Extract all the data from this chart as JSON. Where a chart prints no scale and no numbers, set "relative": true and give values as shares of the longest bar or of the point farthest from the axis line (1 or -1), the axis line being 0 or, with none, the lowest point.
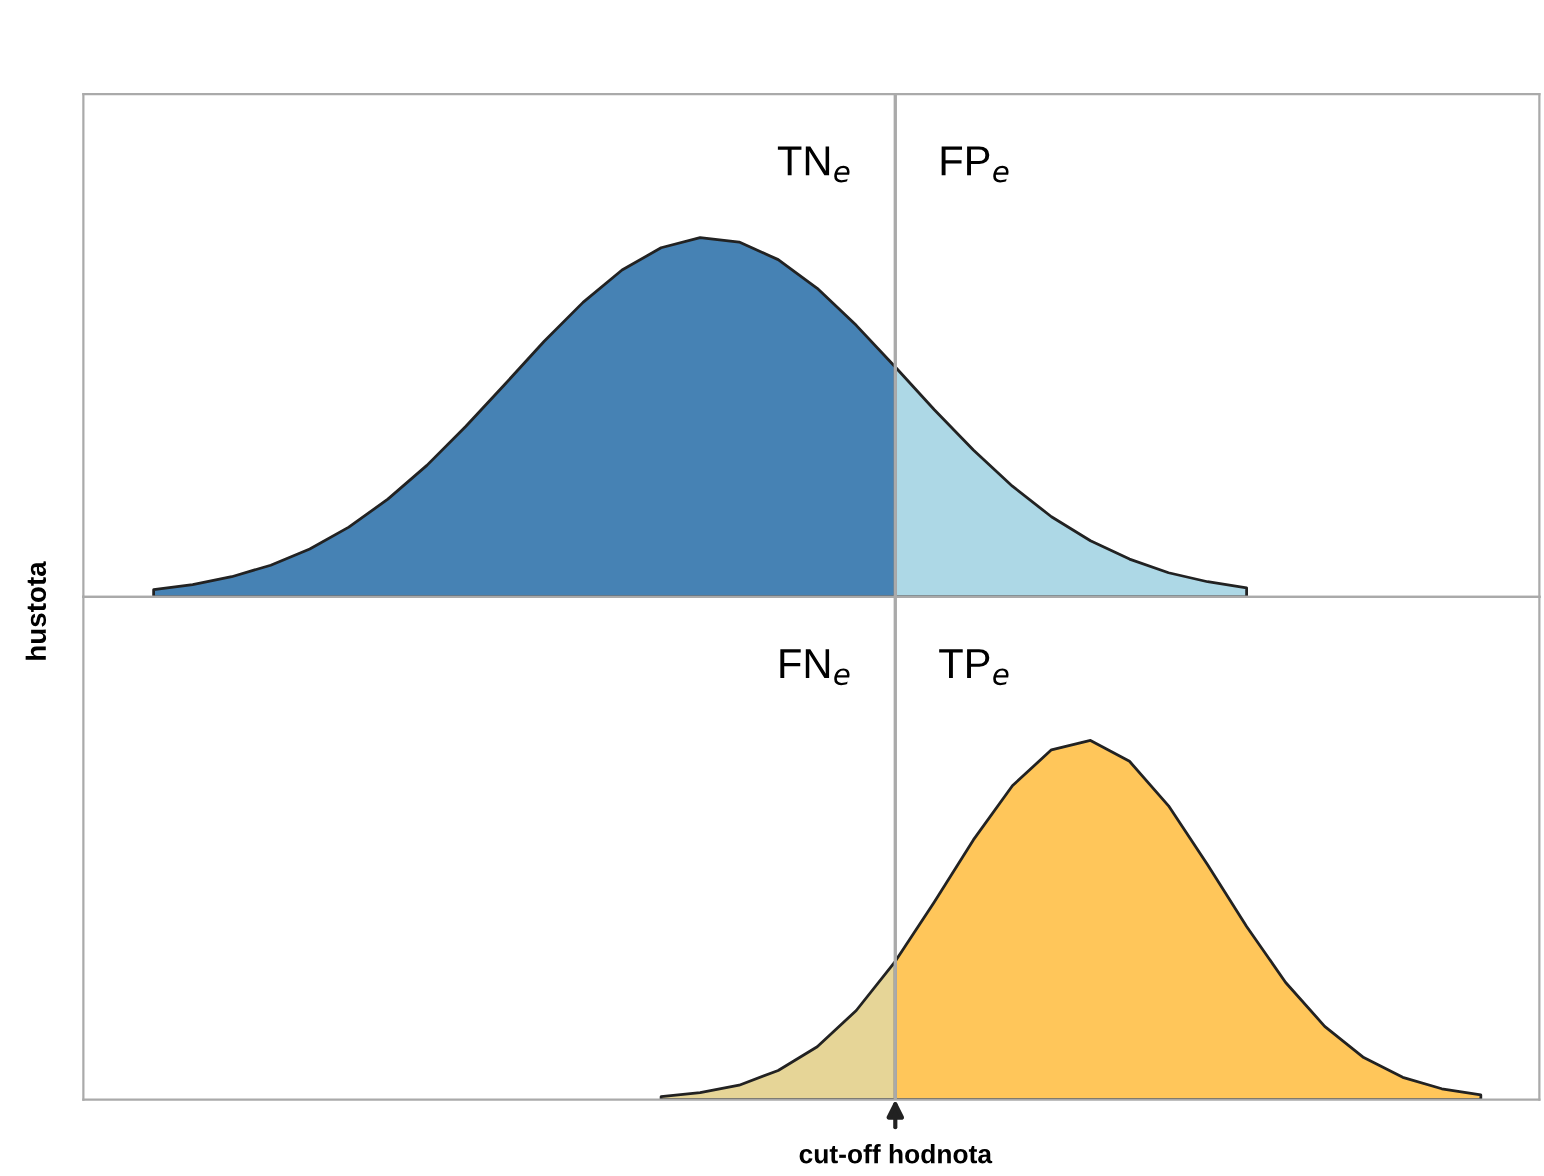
{
  "chart_data": [
    {
      "type": "area",
      "relative": true,
      "ylabel": "hustota",
      "tick_labels": false,
      "categories": [
        null,
        null,
        null,
        null,
        null,
        null,
        null,
        null,
        null,
        null,
        null,
        null,
        null,
        null,
        null,
        null,
        null,
        null,
        null,
        null,
        null,
        null,
        null,
        null,
        null,
        null,
        null,
        null,
        null,
        null,
        null,
        null,
        null,
        null,
        null,
        null,
        null
      ],
      "series": [
        {
          "color": "#4682b4",
          "values": [
            null,
            0.02,
            0.034,
            0.056,
            0.088,
            0.133,
            0.194,
            0.272,
            0.366,
            0.475,
            0.592,
            0.711,
            0.82,
            0.91,
            0.972,
            1,
            0.988,
            0.939,
            0.859,
            0.756,
            0.64,
            null,
            null,
            null,
            null,
            null,
            null,
            null,
            null,
            null,
            null,
            null,
            null,
            null,
            null,
            null,
            null
          ]
        },
        {
          "color": "#add8e6",
          "values": [
            null,
            null,
            null,
            null,
            null,
            null,
            null,
            null,
            null,
            null,
            null,
            null,
            null,
            null,
            null,
            null,
            null,
            null,
            null,
            null,
            0.64,
            0.521,
            0.409,
            0.308,
            0.223,
            0.156,
            0.105,
            0.067,
            0.042,
            0.025,
            null,
            null,
            null,
            null,
            null,
            null,
            null
          ]
        }
      ],
      "annotations": [
        "TN$_{e}$",
        "FP$_{e}$"
      ]
    },
    {
      "type": "area",
      "relative": true,
      "tick_labels": false,
      "categories": [
        null,
        null,
        null,
        null,
        null,
        null,
        null,
        null,
        null,
        null,
        null,
        null,
        null,
        null,
        null,
        null,
        null,
        null,
        null,
        null,
        null,
        null,
        null,
        null,
        null,
        null,
        null,
        null,
        null,
        null,
        null,
        null,
        null,
        null,
        null,
        null,
        null
      ],
      "series": [
        {
          "color": "#e6d597",
          "values": [
            null,
            null,
            null,
            null,
            null,
            null,
            null,
            null,
            null,
            null,
            null,
            null,
            null,
            null,
            0.008,
            0.019,
            0.04,
            0.081,
            0.147,
            0.248,
            0.385,
            null,
            null,
            null,
            null,
            null,
            null,
            null,
            null,
            null,
            null,
            null,
            null,
            null,
            null,
            null,
            null
          ]
        },
        {
          "color": "#ffc65a",
          "values": [
            null,
            null,
            null,
            null,
            null,
            null,
            null,
            null,
            null,
            null,
            null,
            null,
            null,
            null,
            null,
            null,
            null,
            null,
            null,
            null,
            0.385,
            0.55,
            0.723,
            0.874,
            0.974,
            1,
            0.942,
            0.818,
            0.654,
            0.482,
            0.326,
            0.204,
            0.117,
            0.062,
            0.03,
            0.013,
            null
          ]
        }
      ],
      "annotations": [
        "FN$_{e}$",
        "TP$_{e}$",
        "cut-off hodnota"
      ]
    }
  ]
}
